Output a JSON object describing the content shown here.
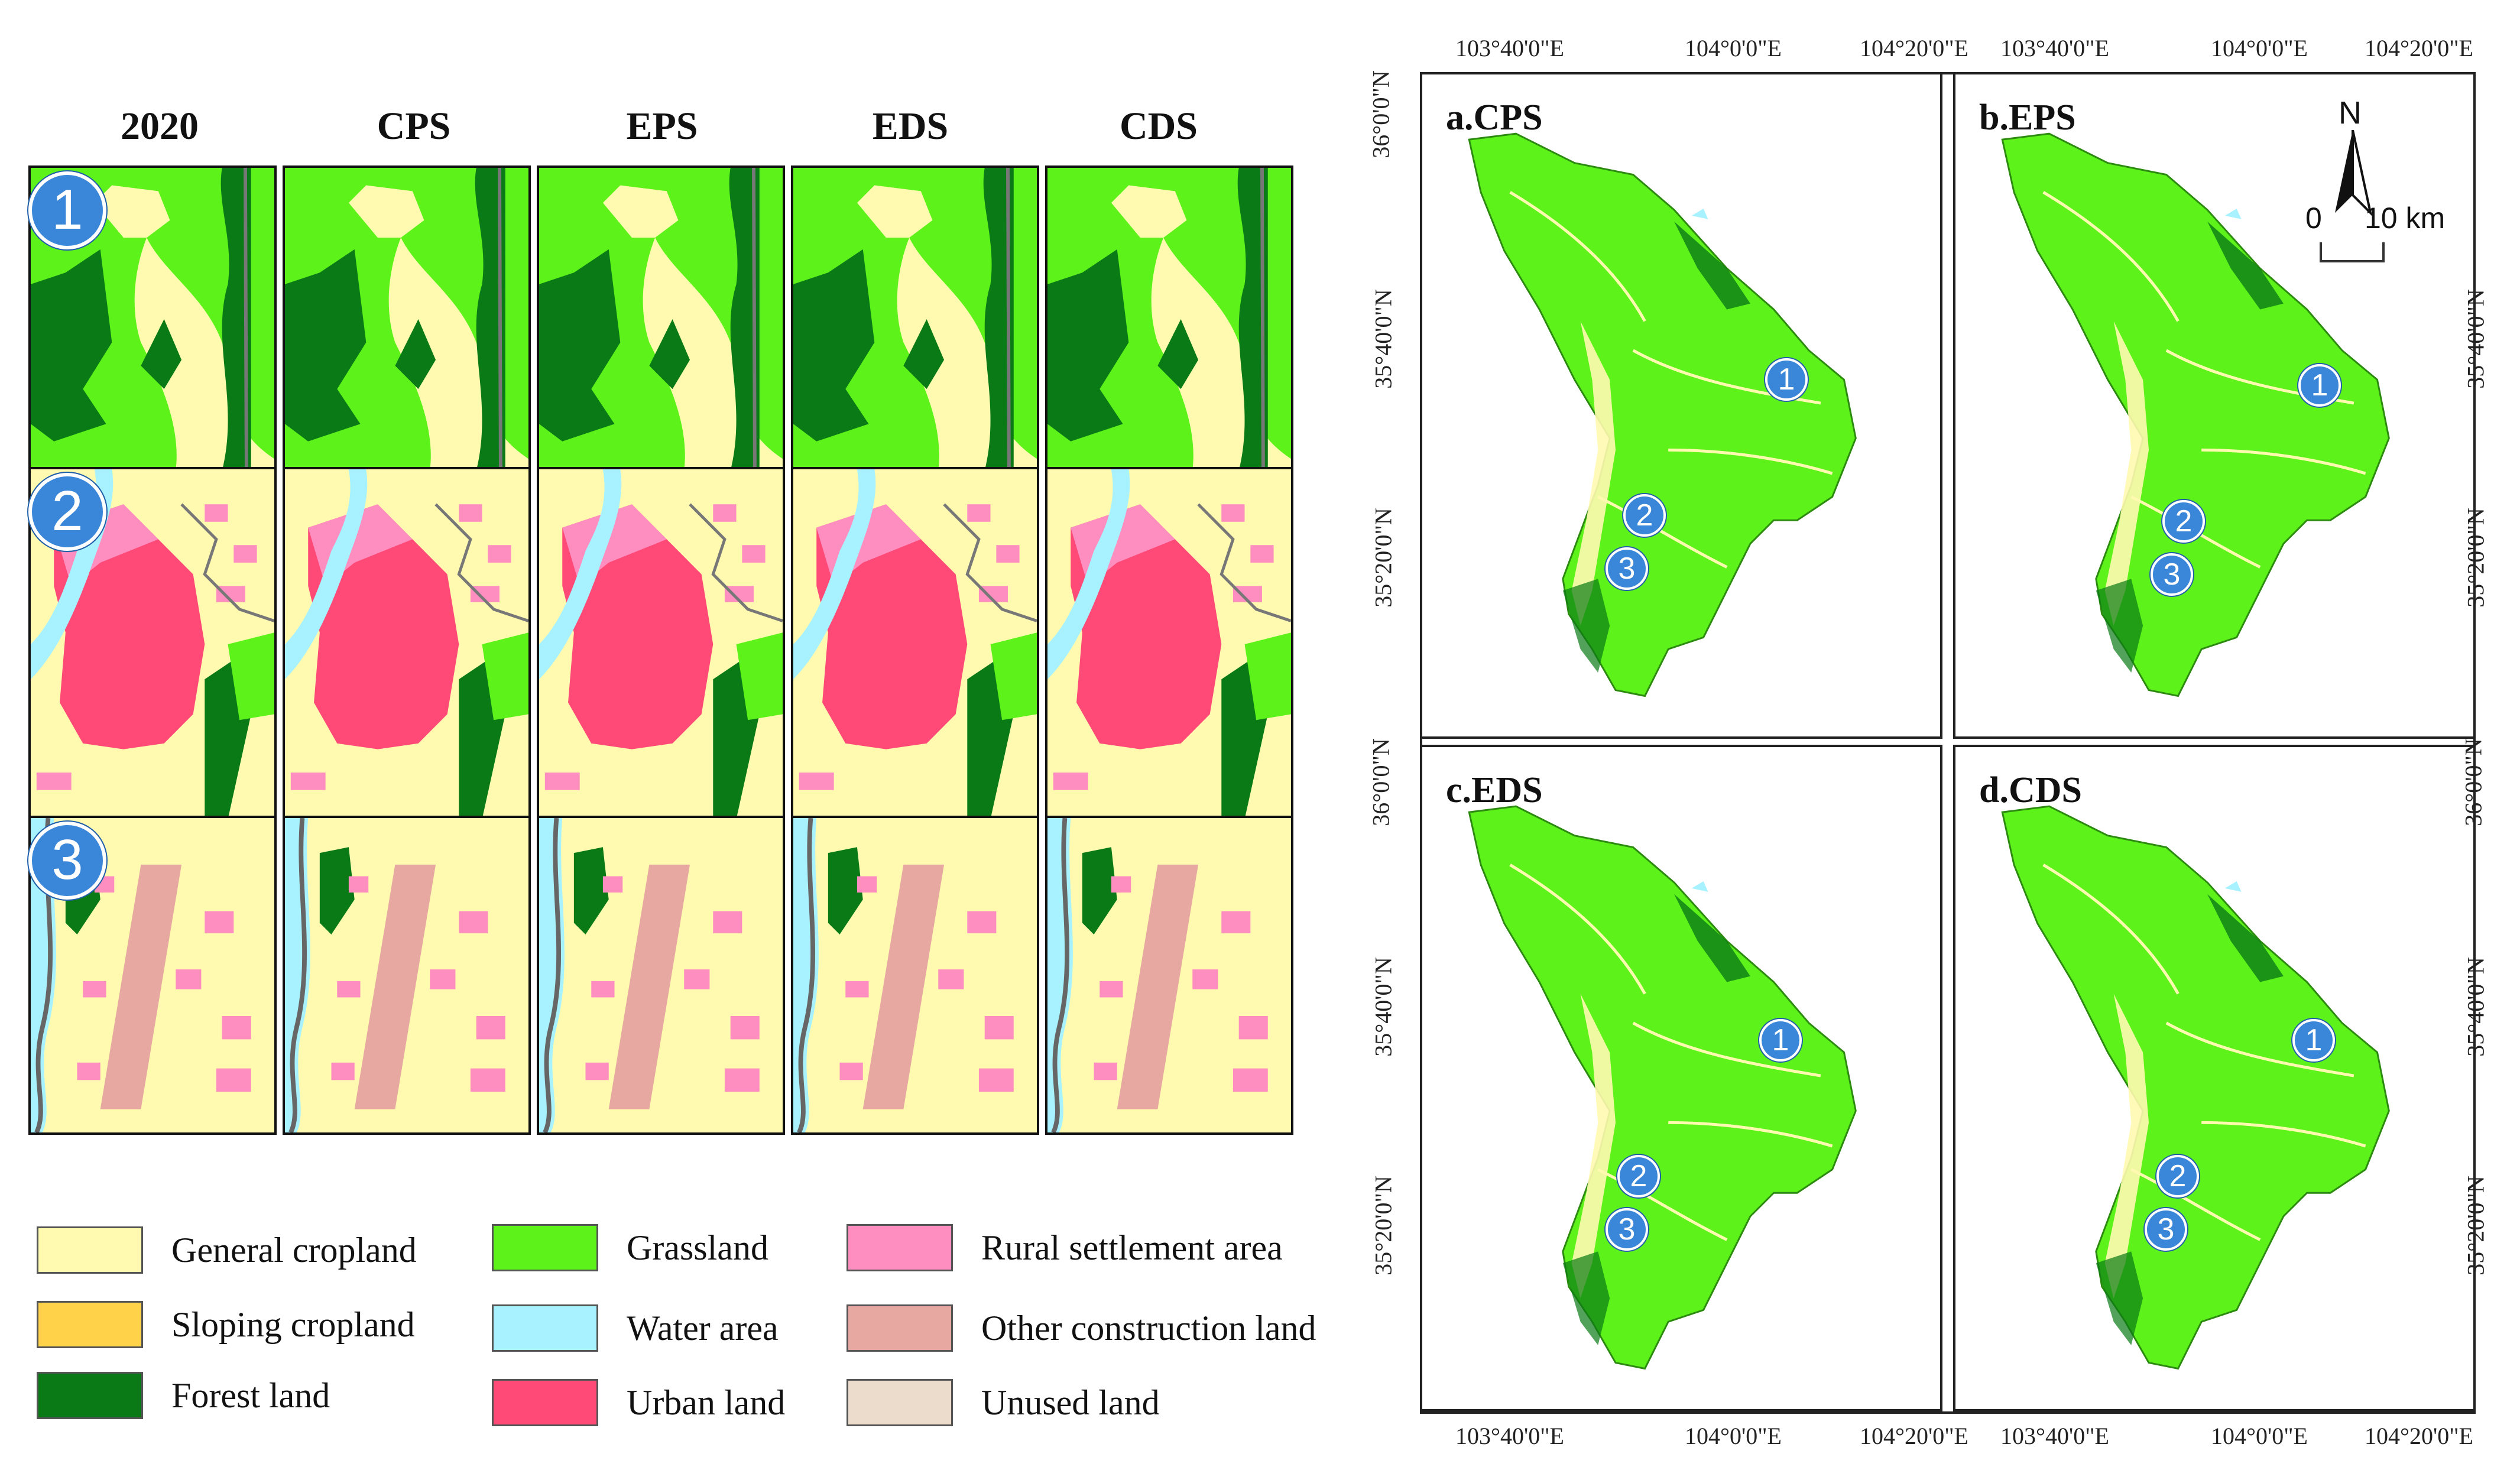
{
  "scenario_columns": [
    "2020",
    "CPS",
    "EPS",
    "EDS",
    "CDS"
  ],
  "rows": [
    "1",
    "2",
    "3"
  ],
  "legend": [
    {
      "label": "General cropland",
      "color": "#fffab0"
    },
    {
      "label": "Sloping cropland",
      "color": "#ffd24a"
    },
    {
      "label": "Forest land",
      "color": "#0a7a16"
    },
    {
      "label": "Grassland",
      "color": "#5cf21a"
    },
    {
      "label": "Water area",
      "color": "#a8f2ff"
    },
    {
      "label": "Urban land",
      "color": "#ff4a78"
    },
    {
      "label": "Rural settlement area",
      "color": "#ff8ec0"
    },
    {
      "label": "Other construction land",
      "color": "#e6a8a0"
    },
    {
      "label": "Unused land",
      "color": "#ecdccc"
    }
  ],
  "panels": [
    {
      "title": "a.CPS"
    },
    {
      "title": "b.EPS"
    },
    {
      "title": "c.EDS"
    },
    {
      "title": "d.CDS"
    }
  ],
  "map_badges": [
    "1",
    "2",
    "3"
  ],
  "lon_ticks": [
    "103°40'0\"E",
    "104°0'0\"E",
    "104°20'0\"E"
  ],
  "lat_ticks": [
    "36°0'0\"N",
    "35°40'0\"N",
    "35°20'0\"N"
  ],
  "north_arrow": "N",
  "scale_bar": {
    "start": "0",
    "end": "10 km"
  }
}
